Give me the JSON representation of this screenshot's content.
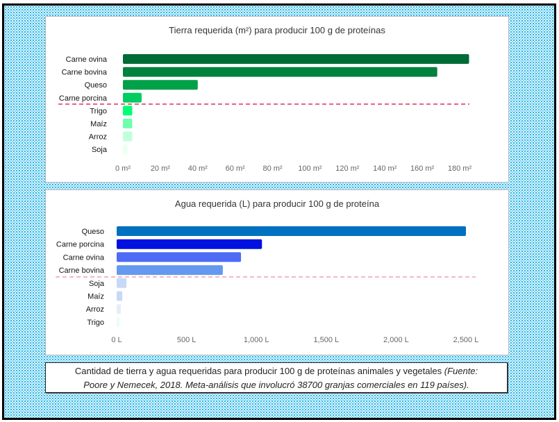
{
  "caption": {
    "text": "Cantidad de tierra y agua requeridas para producir 100 g de proteínas animales y vegetales ",
    "source_line1": "(Fuente:",
    "source_line2": "Poore y Nemecek, 2018. Meta-análisis que involucró 38700 granjas comerciales en 119 países)."
  },
  "chart_data": [
    {
      "type": "bar",
      "orientation": "horizontal",
      "title": "Tierra requerida (m²) para producir 100 g de proteínas",
      "categories": [
        "Carne ovina",
        "Carne bovina",
        "Queso",
        "Carne porcina",
        "Trigo",
        "Maíz",
        "Arroz",
        "Soja"
      ],
      "values": [
        185,
        168,
        40,
        10,
        5,
        5,
        5,
        2.5
      ],
      "colors": [
        "#006b35",
        "#00823e",
        "#00a148",
        "#00cc62",
        "#00ff75",
        "#6fffaf",
        "#c2ffdc",
        "#ecfff3"
      ],
      "unit": "m²",
      "xlim": [
        0,
        180
      ],
      "xticks": [
        0,
        20,
        40,
        60,
        80,
        100,
        120,
        140,
        160,
        180
      ],
      "xtick_labels": [
        "0 m²",
        "20 m²",
        "40 m²",
        "60 m²",
        "80 m²",
        "100 m²",
        "120 m²",
        "140 m²",
        "160 m²",
        "180 m²"
      ],
      "separator_after_index": 3,
      "separator_color": "#e0305a",
      "grid": false
    },
    {
      "type": "bar",
      "orientation": "horizontal",
      "title": "Agua requerida (L) para producir 100 g de proteína",
      "categories": [
        "Queso",
        "Carne porcina",
        "Carne ovina",
        "Carne bovina",
        "Soja",
        "Maíz",
        "Arroz",
        "Trigo"
      ],
      "values": [
        2500,
        1040,
        890,
        760,
        70,
        40,
        30,
        20
      ],
      "colors": [
        "#0070c0",
        "#0010e0",
        "#4d6bf5",
        "#6499ef",
        "#c6d9f8",
        "#c6d9f8",
        "#e4edfc",
        "#e8fff0"
      ],
      "unit": "L",
      "xlim": [
        0,
        2500
      ],
      "xticks": [
        0,
        500,
        1000,
        1500,
        2000,
        2500
      ],
      "xtick_labels": [
        "0 L",
        "500 L",
        "1,000 L",
        "1,500 L",
        "2,000 L",
        "2,500 L"
      ],
      "separator_after_index": 3,
      "separator_color": "#f0a0b0",
      "grid": false
    }
  ]
}
